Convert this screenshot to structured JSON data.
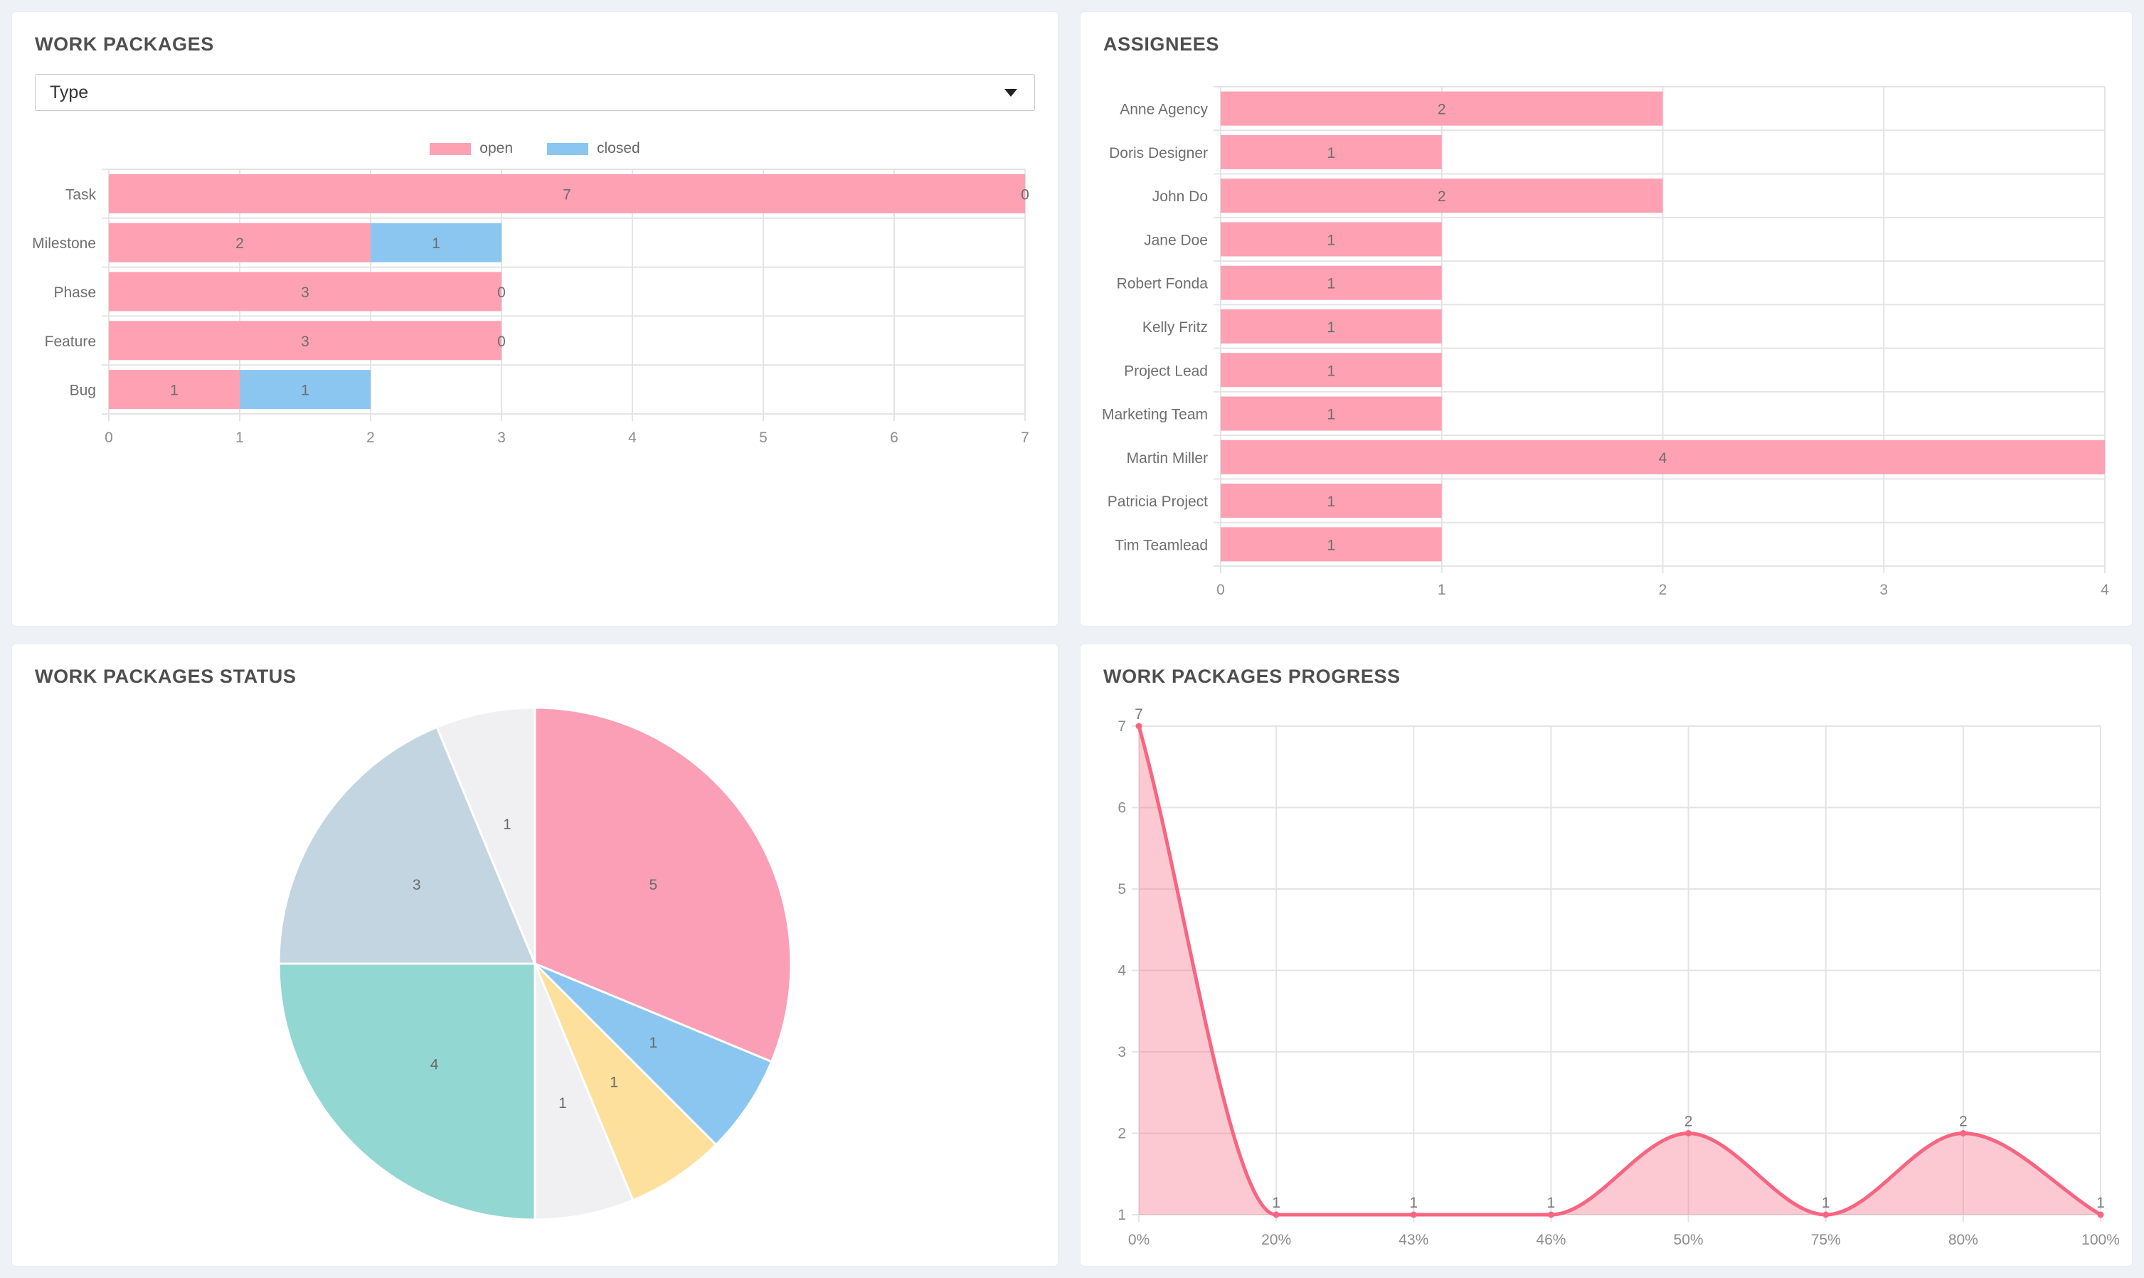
{
  "panels": {
    "work_packages": {
      "title": "WORK PACKAGES",
      "type_filter": {
        "selected": "Type"
      },
      "legend": [
        {
          "label": "open",
          "color": "#fda1b3"
        },
        {
          "label": "closed",
          "color": "#8ac6ef"
        }
      ],
      "chart_data": {
        "type": "bar",
        "orientation": "horizontal",
        "stacked": true,
        "categories": [
          "Task",
          "Milestone",
          "Phase",
          "Feature",
          "Bug"
        ],
        "series": [
          {
            "name": "open",
            "color": "#fda1b3",
            "values": [
              7,
              2,
              3,
              3,
              1
            ]
          },
          {
            "name": "closed",
            "color": "#8ac6ef",
            "values": [
              0,
              1,
              0,
              0,
              1
            ]
          }
        ],
        "xlim": [
          0,
          7
        ],
        "xticks": [
          0,
          1,
          2,
          3,
          4,
          5,
          6,
          7
        ],
        "grid": true,
        "value_labels": true
      }
    },
    "assignees": {
      "title": "ASSIGNEES",
      "chart_data": {
        "type": "bar",
        "orientation": "horizontal",
        "categories": [
          "Anne Agency",
          "Doris Designer",
          "John Do",
          "Jane Doe",
          "Robert Fonda",
          "Kelly Fritz",
          "Project Lead",
          "Marketing Team",
          "Martin Miller",
          "Patricia Project",
          "Tim Teamlead"
        ],
        "values": [
          2,
          1,
          2,
          1,
          1,
          1,
          1,
          1,
          4,
          1,
          1
        ],
        "bar_color": "#fda1b3",
        "xlim": [
          0,
          4
        ],
        "xticks": [
          0,
          1,
          2,
          3,
          4
        ],
        "grid": true,
        "value_labels": true
      }
    },
    "status": {
      "title": "WORK PACKAGES STATUS",
      "chart_data": {
        "type": "pie",
        "start_angle_deg": 0,
        "direction": "clockwise",
        "label_color": "#6b6b6b",
        "slices": [
          {
            "value": 5,
            "color": "#fa9fb6"
          },
          {
            "value": 1,
            "color": "#8ac6ef"
          },
          {
            "value": 1,
            "color": "#fde09c"
          },
          {
            "value": 1,
            "color": "#f0f0f2"
          },
          {
            "value": 4,
            "color": "#93d7d3"
          },
          {
            "value": 3,
            "color": "#c3d5e0"
          },
          {
            "value": 1,
            "color": "#f0f0f2"
          }
        ]
      }
    },
    "progress": {
      "title": "WORK PACKAGES PROGRESS",
      "chart_data": {
        "type": "area",
        "x": [
          "0%",
          "20%",
          "43%",
          "46%",
          "50%",
          "75%",
          "80%",
          "100%"
        ],
        "values": [
          7,
          1,
          1,
          1,
          2,
          1,
          2,
          1
        ],
        "line_color": "#f76581",
        "fill_color": "rgba(247,101,129,0.35)",
        "ylim": [
          1,
          7
        ],
        "yticks": [
          1,
          2,
          3,
          4,
          5,
          6,
          7
        ],
        "grid": true,
        "value_labels": true,
        "smooth": true
      }
    }
  }
}
